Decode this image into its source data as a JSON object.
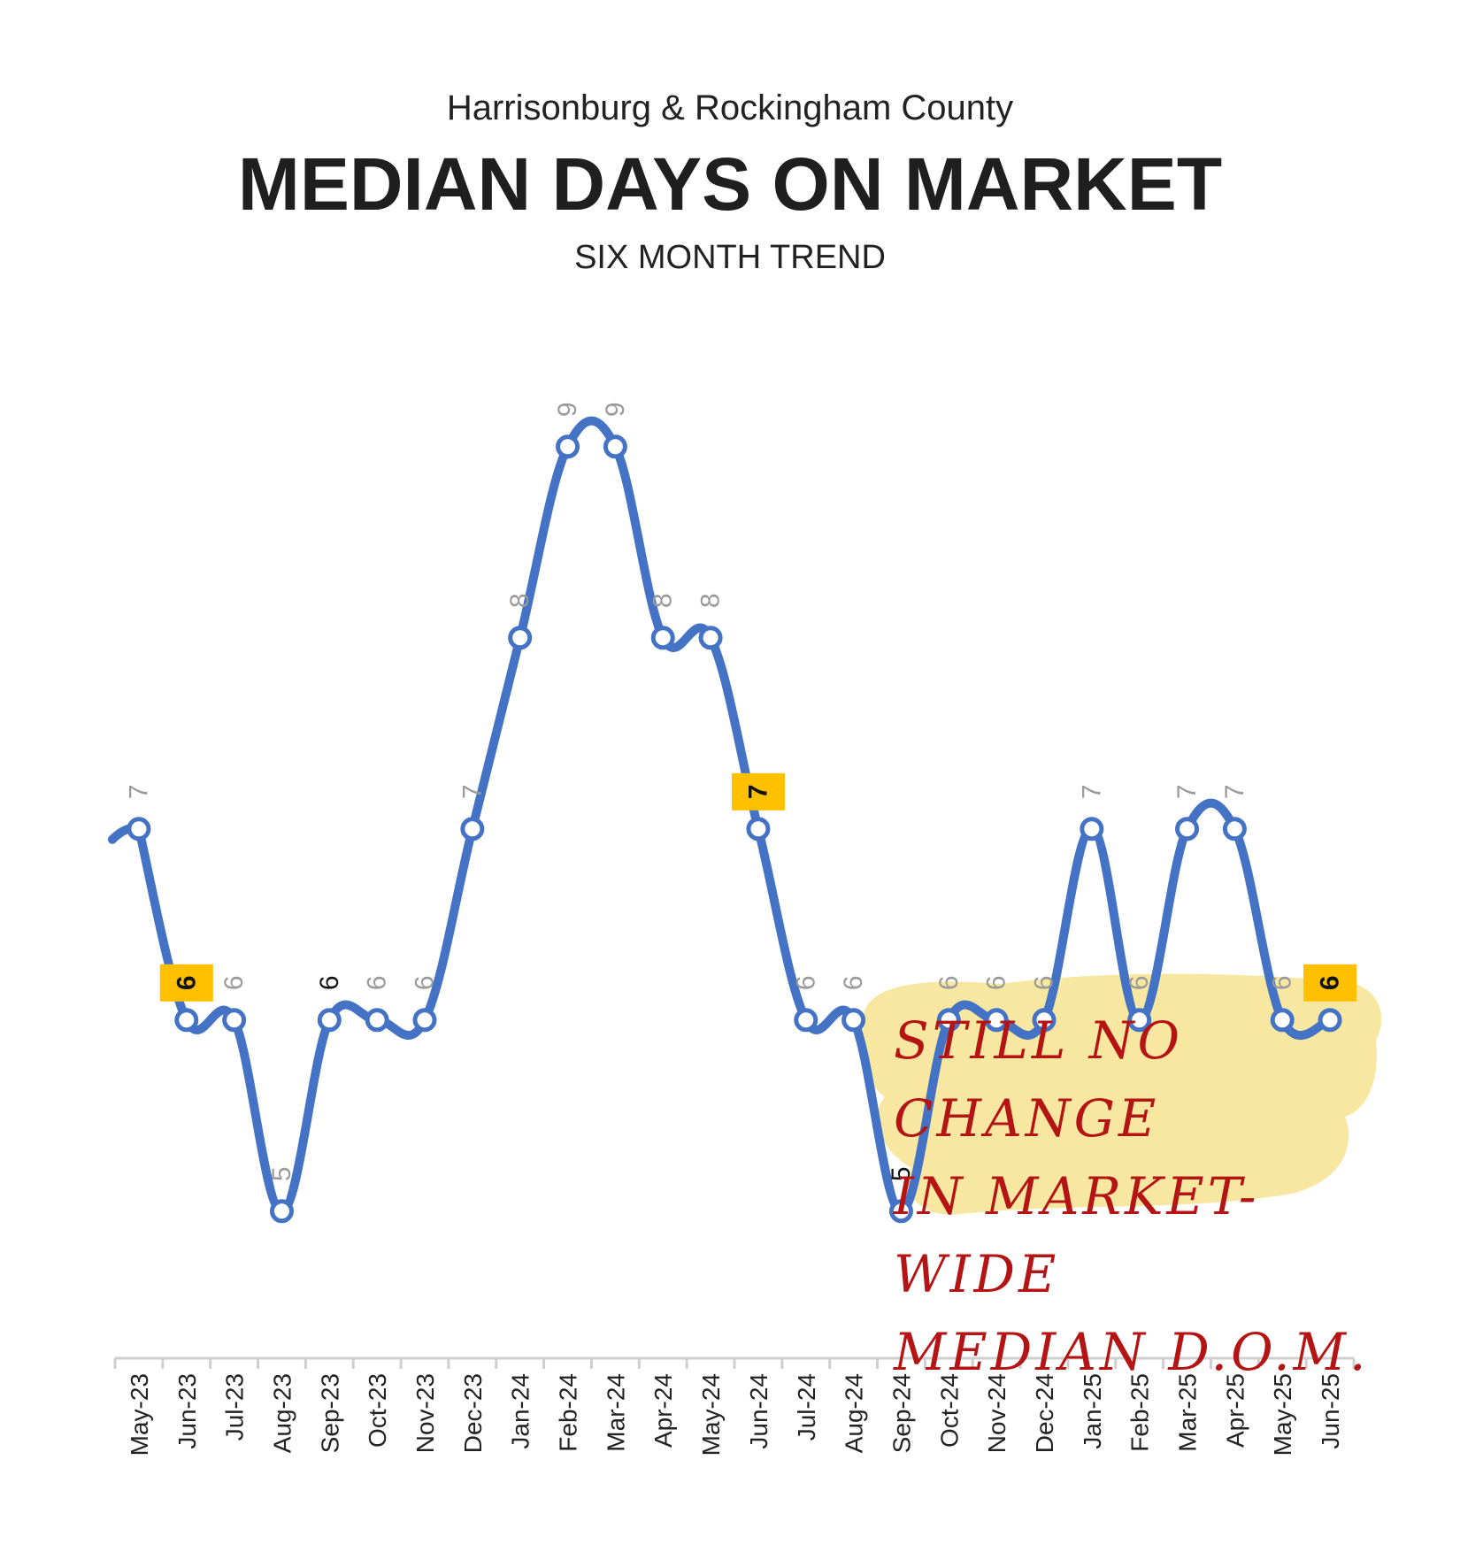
{
  "header": {
    "region": "Harrisonburg & Rockingham County",
    "title": "MEDIAN DAYS ON MARKET",
    "subtitle": "SIX MONTH TREND"
  },
  "annotation": {
    "lines": [
      "Still no change",
      "in market-wide",
      "median D.O.M."
    ]
  },
  "colors": {
    "line": "#4472C4",
    "highlight": "#FFC000",
    "label": "#9a9a9a",
    "note_bg": "#F7E7A1",
    "note_text": "#B51414"
  },
  "chart_data": {
    "type": "line",
    "categories": [
      "May-23",
      "Jun-23",
      "Jul-23",
      "Aug-23",
      "Sep-23",
      "Oct-23",
      "Nov-23",
      "Dec-23",
      "Jan-24",
      "Feb-24",
      "Mar-24",
      "Apr-24",
      "May-24",
      "Jun-24",
      "Jul-24",
      "Aug-24",
      "Sep-24",
      "Oct-24",
      "Nov-24",
      "Dec-24",
      "Jan-25",
      "Feb-25",
      "Mar-25",
      "Apr-25",
      "May-25",
      "Jun-25"
    ],
    "values": [
      7,
      6,
      6,
      5,
      6,
      6,
      6,
      7,
      8,
      9,
      9,
      8,
      8,
      7,
      6,
      6,
      5,
      6,
      6,
      6,
      7,
      6,
      7,
      7,
      6,
      6
    ],
    "highlighted": [
      "Jun-23",
      "Jun-24",
      "Jun-25"
    ],
    "emphasized": [
      "Sep-23",
      "Sep-24"
    ],
    "ylim": [
      4.3,
      9.3
    ],
    "grid": false,
    "data_labels": true
  }
}
